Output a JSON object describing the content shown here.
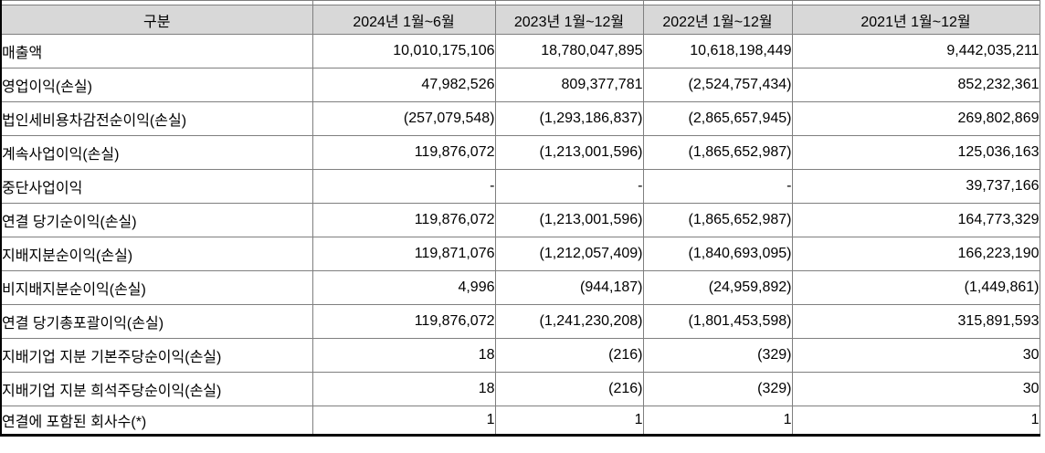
{
  "table": {
    "columns": [
      "구분",
      "2024년 1월~6월",
      "2023년 1월~12월",
      "2022년 1월~12월",
      "2021년 1월~12월"
    ],
    "rows": [
      {
        "label": "매출액",
        "values": [
          "10,010,175,106",
          "18,780,047,895",
          "10,618,198,449",
          "9,442,035,211"
        ]
      },
      {
        "label": "영업이익(손실)",
        "values": [
          "47,982,526",
          "809,377,781",
          "(2,524,757,434)",
          "852,232,361"
        ]
      },
      {
        "label": "법인세비용차감전순이익(손실)",
        "values": [
          "(257,079,548)",
          "(1,293,186,837)",
          "(2,865,657,945)",
          "269,802,869"
        ]
      },
      {
        "label": "계속사업이익(손실)",
        "values": [
          "119,876,072",
          "(1,213,001,596)",
          "(1,865,652,987)",
          "125,036,163"
        ]
      },
      {
        "label": "중단사업이익",
        "values": [
          "-",
          "-",
          "-",
          "39,737,166"
        ]
      },
      {
        "label": "연결 당기순이익(손실)",
        "values": [
          "119,876,072",
          "(1,213,001,596)",
          "(1,865,652,987)",
          "164,773,329"
        ]
      },
      {
        "label": "지배지분순이익(손실)",
        "values": [
          "119,871,076",
          "(1,212,057,409)",
          "(1,840,693,095)",
          "166,223,190"
        ]
      },
      {
        "label": "비지배지분순이익(손실)",
        "values": [
          "4,996",
          "(944,187)",
          "(24,959,892)",
          "(1,449,861)"
        ]
      },
      {
        "label": "연결 당기총포괄이익(손실)",
        "values": [
          "119,876,072",
          "(1,241,230,208)",
          "(1,801,453,598)",
          "315,891,593"
        ]
      },
      {
        "label": "지배기업 지분 기본주당순이익(손실)",
        "values": [
          "18",
          "(216)",
          "(329)",
          "30"
        ]
      },
      {
        "label": "지배기업 지분 희석주당순이익(손실)",
        "values": [
          "18",
          "(216)",
          "(329)",
          "30"
        ]
      },
      {
        "label": "연결에 포함된 회사수(*)",
        "values": [
          "1",
          "1",
          "1",
          "1"
        ]
      }
    ],
    "colors": {
      "header_background": "#d8d8d8",
      "grid_line": "#7f7f7f",
      "outer_border": "#000000",
      "text": "#000000"
    }
  }
}
